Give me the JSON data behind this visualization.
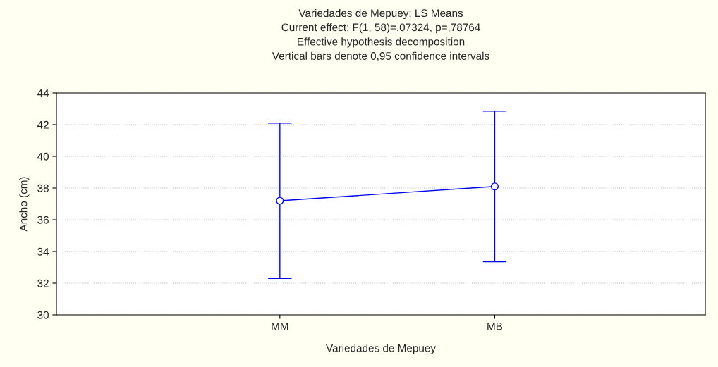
{
  "chart_data": {
    "type": "line",
    "title": "Variedades de Mepuey; LS Means",
    "subtitle": "Current effect: F(1, 58)=,07324, p=,78764\nEffective hypothesis decomposition\nVertical bars denote 0,95 confidence intervals",
    "xlabel": "Variedades de Mepuey",
    "ylabel": "Ancho (cm)",
    "categories": [
      "MM",
      "MB"
    ],
    "series": [
      {
        "color": "#0000ee",
        "values": [
          37.2,
          38.1
        ],
        "errors": [
          4.9,
          4.75
        ]
      }
    ],
    "ylim": [
      30,
      44
    ],
    "yticks": [
      30,
      32,
      34,
      36,
      38,
      40,
      42,
      44
    ],
    "grid": "y",
    "marker": "circle",
    "line_style": "solid",
    "legend": false
  }
}
